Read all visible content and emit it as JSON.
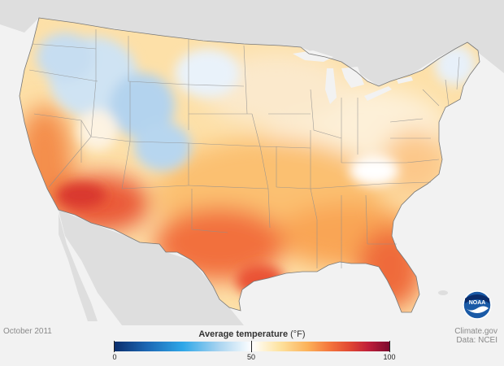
{
  "footer": {
    "date": "October 2011",
    "source_line1": "Climate.gov",
    "source_line2": "Data: NCEI"
  },
  "legend": {
    "title": "Average temperature",
    "unit": "(°F)",
    "ticks": [
      "0",
      "50",
      "100"
    ],
    "range": [
      0,
      100
    ]
  },
  "logo": {
    "text": "NOAA",
    "icon": "noaa-logo-icon"
  },
  "colors": {
    "cold": "#1c67b4",
    "neutral": "#ffffff",
    "warm": "#fcb25a",
    "hot": "#e24a33",
    "ocean": "#f2f2f2",
    "land_outside": "#dcdcdc"
  }
}
